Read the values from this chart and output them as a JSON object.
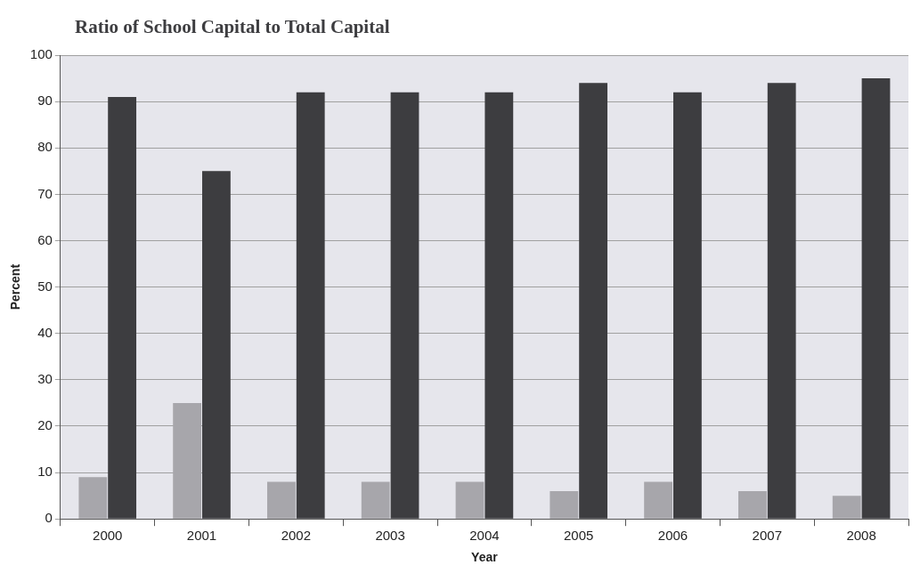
{
  "chart_data": {
    "type": "bar",
    "title": "Ratio of School Capital to Total Capital",
    "xlabel": "Year",
    "ylabel": "Percent",
    "categories": [
      "2000",
      "2001",
      "2002",
      "2003",
      "2004",
      "2005",
      "2006",
      "2007",
      "2008"
    ],
    "series": [
      {
        "color": "#a7a6ab",
        "values": [
          9,
          25,
          8,
          8,
          8,
          6,
          8,
          6,
          5
        ]
      },
      {
        "color": "#3d3d40",
        "values": [
          91,
          75,
          92,
          92,
          92,
          94,
          92,
          94,
          95
        ]
      }
    ],
    "ylim": [
      0,
      100
    ],
    "yticks": [
      0,
      10,
      20,
      30,
      40,
      50,
      60,
      70,
      80,
      90,
      100
    ],
    "grid": "y",
    "legend": false
  }
}
